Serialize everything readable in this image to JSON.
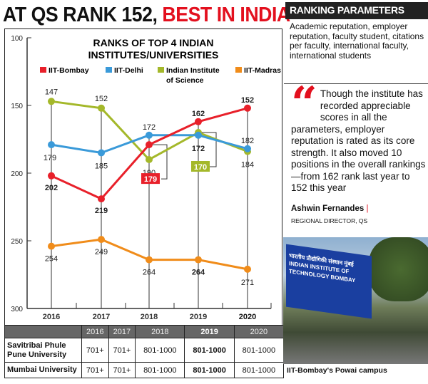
{
  "headline": {
    "part1": "AT QS RANK 152, ",
    "part2": "BEST IN INDIA"
  },
  "chart_data": {
    "type": "line",
    "title": "RANKS OF TOP 4 INDIAN INSTITUTES/UNIVERSITIES",
    "title_line1": "RANKS OF TOP 4 INDIAN",
    "title_line2": "INSTITUTES/UNIVERSITIES",
    "x": [
      "2016",
      "2017",
      "2018",
      "2019",
      "2020"
    ],
    "ylim": [
      300,
      100
    ],
    "yticks": [
      100,
      150,
      200,
      250,
      300
    ],
    "inverted_y": true,
    "legend_placement": "top",
    "series": [
      {
        "name": "IIT-Bombay",
        "color": "#e8202a",
        "values": [
          202,
          219,
          179,
          162,
          152
        ]
      },
      {
        "name": "IIT-Delhi",
        "color": "#3a9ad9",
        "values": [
          179,
          185,
          172,
          172,
          182
        ]
      },
      {
        "name": "Indian Institute of Science",
        "name_line1": "Indian Institute",
        "name_line2": "of Science",
        "color": "#a4b82a",
        "values": [
          147,
          152,
          190,
          170,
          184
        ]
      },
      {
        "name": "IIT-Madras",
        "color": "#f08c1a",
        "values": [
          254,
          249,
          264,
          264,
          271
        ]
      }
    ]
  },
  "table": {
    "headers": [
      "2016",
      "2017",
      "2018",
      "2019",
      "2020"
    ],
    "rows": [
      {
        "name": "Savitribai Phule Pune University",
        "values": [
          "701+",
          "701+",
          "801-1000",
          "801-1000",
          "801-1000"
        ]
      },
      {
        "name": "Mumbai University",
        "values": [
          "701+",
          "701+",
          "801-1000",
          "801-1000",
          "801-1000"
        ]
      }
    ]
  },
  "params": {
    "heading": "RANKING PARAMETERS",
    "body": "Academic reputation, employer reputation, faculty student, citations per faculty, international faculty, international students"
  },
  "quote": {
    "mark": "“",
    "text": "Though the institute has recorded appreciable scores in all the parameters, employer reputation is rated as its core strength. It also moved 10 positions in the overall rankings—from 162 rank last year to 152 this year",
    "author": "Ashwin Fernandes",
    "bar": "|",
    "role": "REGIONAL DIRECTOR, QS"
  },
  "photo": {
    "sign_hindi": "भारतीय प्रौद्योगिकी संस्थान मुंबई",
    "sign_english": "INDIAN INSTITUTE OF TECHNOLOGY BOMBAY",
    "caption": "IIT-Bombay's Powai campus"
  }
}
